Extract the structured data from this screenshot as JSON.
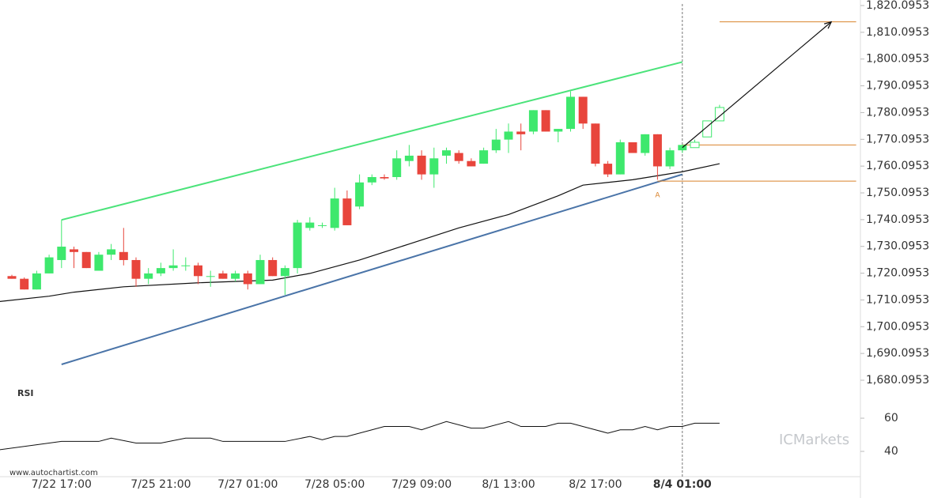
{
  "chart_data": {
    "type": "candlestick",
    "categories": [
      null,
      null,
      null,
      null,
      "7/22 17:00",
      null,
      null,
      null,
      null,
      null,
      null,
      null,
      "7/25 21:00",
      null,
      null,
      null,
      null,
      null,
      null,
      "7/27 01:00",
      null,
      null,
      null,
      null,
      null,
      null,
      "7/28 05:00",
      null,
      null,
      null,
      null,
      null,
      null,
      "7/29 09:00",
      null,
      null,
      null,
      null,
      null,
      null,
      "8/1 13:00",
      null,
      null,
      null,
      null,
      null,
      null,
      "8/2 17:00",
      null,
      null,
      null,
      null,
      null,
      null,
      "8/4 01:00",
      null,
      null,
      null
    ],
    "highlight_category": 54,
    "open": [
      1719,
      1718,
      1714,
      1720,
      1725,
      1729,
      1728,
      1721,
      1727,
      1728,
      1725,
      1718,
      1720,
      1722,
      1723,
      1723,
      1719,
      1720,
      1718,
      1720,
      1716,
      1725,
      1719,
      1722,
      1737,
      1738,
      1737,
      1748,
      1745,
      1754,
      1756,
      1756,
      1762,
      1764,
      1757,
      1764,
      1765,
      1762,
      1761,
      1766,
      1770,
      1773,
      1773,
      1781,
      1773,
      1774,
      1786,
      1776,
      1761,
      1757,
      1769,
      1765,
      1772,
      1760,
      1766,
      1767,
      1771,
      1777
    ],
    "high": [
      1719.5,
      1718.5,
      1721,
      1727,
      1740,
      1730,
      1728,
      1728,
      1731,
      1737,
      1726,
      1722,
      1724,
      1729,
      1726,
      1724,
      1721,
      1721,
      1721,
      1721,
      1727,
      1726,
      1723,
      1740,
      1741,
      1739,
      1752,
      1751,
      1757,
      1757,
      1757,
      1766,
      1768,
      1766,
      1767,
      1767,
      1766,
      1763,
      1767,
      1774,
      1776,
      1776,
      1781,
      1781,
      1774,
      1788,
      1786,
      1776,
      1762,
      1770,
      1769,
      1772,
      1772,
      1767,
      1768,
      1770,
      1777,
      1783
    ],
    "low": [
      1718,
      1714,
      1714,
      1720,
      1722,
      1722,
      1722,
      1721,
      1725,
      1723,
      1715,
      1716,
      1719,
      1721,
      1721,
      1716,
      1715,
      1718,
      1717,
      1714,
      1716,
      1719,
      1712,
      1720,
      1736,
      1737,
      1736,
      1738,
      1744,
      1753,
      1755,
      1755,
      1760,
      1755,
      1752,
      1761,
      1761,
      1760,
      1761,
      1765,
      1765,
      1766,
      1772,
      1773,
      1769,
      1773,
      1774,
      1760,
      1756,
      1757,
      1765,
      1764,
      1755,
      1759,
      1765,
      1767,
      1771,
      1777
    ],
    "close": [
      1718,
      1714,
      1720,
      1726,
      1730,
      1728,
      1722,
      1727,
      1729,
      1725,
      1718,
      1720,
      1722,
      1723,
      1723,
      1719,
      1719,
      1718,
      1720,
      1716,
      1725,
      1719,
      1722,
      1739,
      1739,
      1738,
      1748,
      1738,
      1754,
      1756,
      1755.5,
      1763,
      1764,
      1757,
      1763,
      1766,
      1762,
      1760,
      1766,
      1770,
      1773,
      1772,
      1781,
      1773,
      1774,
      1786,
      1776,
      1761,
      1757,
      1769,
      1765,
      1772,
      1760,
      1766,
      1768,
      1769,
      1777,
      1782
    ],
    "projected": [
      false,
      false,
      false,
      false,
      false,
      false,
      false,
      false,
      false,
      false,
      false,
      false,
      false,
      false,
      false,
      false,
      false,
      false,
      false,
      false,
      false,
      false,
      false,
      false,
      false,
      false,
      false,
      false,
      false,
      false,
      false,
      false,
      false,
      false,
      false,
      false,
      false,
      false,
      false,
      false,
      false,
      false,
      false,
      false,
      false,
      false,
      false,
      false,
      false,
      false,
      false,
      false,
      false,
      false,
      false,
      true,
      true,
      true
    ],
    "up_color": "#3ee86d",
    "down_color": "#e8453c",
    "ylim": [
      1680.0953,
      1820.0953
    ],
    "yticks": [
      {
        "value": 1680.0953,
        "label": "1,680.0953"
      },
      {
        "value": 1690.0953,
        "label": "1,690.0953"
      },
      {
        "value": 1700.0953,
        "label": "1,700.0953"
      },
      {
        "value": 1710.0953,
        "label": "1,710.0953"
      },
      {
        "value": 1720.0953,
        "label": "1,720.0953"
      },
      {
        "value": 1730.0953,
        "label": "1,730.0953"
      },
      {
        "value": 1740.0953,
        "label": "1,740.0953"
      },
      {
        "value": 1750.0953,
        "label": "1,750.0953"
      },
      {
        "value": 1760.0953,
        "label": "1,760.0953"
      },
      {
        "value": 1770.0953,
        "label": "1,770.0953"
      },
      {
        "value": 1780.0953,
        "label": "1,780.0953"
      },
      {
        "value": 1790.0953,
        "label": "1,790.0953"
      },
      {
        "value": 1800.0953,
        "label": "1,800.0953"
      },
      {
        "value": 1810.0953,
        "label": "1,810.0953"
      },
      {
        "value": 1820.0953,
        "label": "1,820.0953"
      }
    ],
    "moving_average": {
      "color": "#111",
      "x": [
        -1,
        3,
        5,
        9,
        15,
        21,
        24,
        28,
        32,
        36,
        40,
        44,
        46,
        50,
        54,
        57
      ],
      "values": [
        1709.5,
        1711.5,
        1713,
        1715,
        1716.5,
        1717.5,
        1720,
        1725,
        1731,
        1737,
        1742,
        1749,
        1753,
        1755,
        1758,
        1761
      ]
    },
    "channel_upper": {
      "color": "#4be37a",
      "x": [
        4,
        54
      ],
      "values": [
        1740,
        1799
      ]
    },
    "channel_lower": {
      "color": "#4a74a8",
      "x": [
        4,
        54
      ],
      "values": [
        1686,
        1757
      ]
    },
    "forecast_arrow": {
      "color": "#111",
      "x": [
        54,
        66
      ],
      "values": [
        1767,
        1814
      ]
    },
    "levels": [
      {
        "color": "#d9822b",
        "x": [
          57,
          68
        ],
        "value": 1814
      },
      {
        "color": "#d9822b",
        "x": [
          54,
          68
        ],
        "value": 1768
      },
      {
        "color": "#d9822b",
        "x": [
          52,
          68
        ],
        "value": 1754.5
      }
    ],
    "annotation": {
      "text": "A",
      "x": 52,
      "value": 1751,
      "color": "#d9822b"
    },
    "rsi": {
      "label": "RSI",
      "color": "#111",
      "x": [
        -1,
        2,
        4,
        7,
        8,
        10,
        12,
        14,
        16,
        17,
        22,
        24,
        25,
        26,
        27,
        29,
        30,
        32,
        33,
        35,
        37,
        38,
        40,
        41,
        43,
        44,
        45,
        47,
        48,
        49,
        50,
        51,
        52,
        53,
        54,
        55,
        57
      ],
      "values": [
        41,
        44,
        46,
        46,
        48,
        45,
        45,
        48,
        48,
        46,
        46,
        49,
        47,
        49,
        49,
        53,
        55,
        55,
        53,
        58,
        54,
        54,
        58,
        55,
        55,
        57,
        57,
        53,
        51,
        53,
        53,
        55,
        53,
        55,
        55,
        57,
        57
      ],
      "ylim": [
        26.2,
        78.6
      ],
      "yticks": [
        40,
        60
      ]
    },
    "watermark": "ICMarkets",
    "source": "www.autochartist.com"
  }
}
